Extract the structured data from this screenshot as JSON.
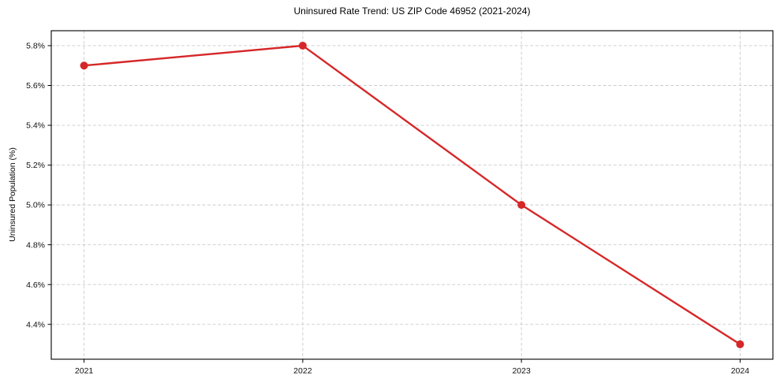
{
  "chart_data": {
    "type": "line",
    "title": "Uninsured Rate Trend: US ZIP Code 46952 (2021-2024)",
    "xlabel": "",
    "ylabel": "Uninsured Population (%)",
    "x": [
      2021,
      2022,
      2023,
      2024
    ],
    "x_tick_labels": [
      "2021",
      "2022",
      "2023",
      "2024"
    ],
    "series": [
      {
        "name": "Uninsured Rate",
        "values": [
          5.7,
          5.8,
          5.0,
          4.3
        ]
      }
    ],
    "y_ticks": [
      4.4,
      4.6,
      4.8,
      5.0,
      5.2,
      5.4,
      5.6,
      5.8
    ],
    "y_tick_labels": [
      "4.4%",
      "4.6%",
      "4.8%",
      "5.0%",
      "5.2%",
      "5.4%",
      "5.6%",
      "5.8%"
    ],
    "xlim": [
      2020.85,
      2024.15
    ],
    "ylim": [
      4.225,
      5.875
    ],
    "grid": true,
    "legend_position": "none",
    "line_color": "#d62728",
    "marker": "circle",
    "grid_color": "#cbcbcb",
    "background": "#ffffff"
  }
}
